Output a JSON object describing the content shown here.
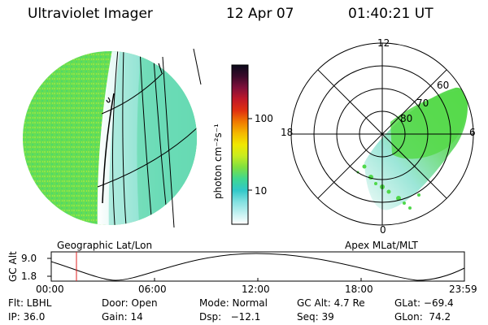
{
  "header": {
    "instrument": "Ultraviolet Imager",
    "date": "12 Apr 07",
    "time": "01:40:21 UT"
  },
  "colorbar": {
    "unit_label": "photon cm⁻²s⁻¹",
    "ticks": [
      "100",
      "10"
    ],
    "colors": [
      "#0a0a1a",
      "#3a0a2a",
      "#80103a",
      "#c01828",
      "#e03010",
      "#f07a00",
      "#f4b800",
      "#f0e800",
      "#c8ec20",
      "#7ee040",
      "#40d890",
      "#30c8c8",
      "#80e0e0",
      "#c0f0f0",
      "#ffffff"
    ]
  },
  "geo_panel": {
    "label": "Geographic Lat/Lon",
    "disc_color": "#66dd55"
  },
  "polar_panel": {
    "label": "Apex MLat/MLT",
    "mlt_labels": {
      "top": "12",
      "left": "18",
      "right": "6",
      "bottom": "0"
    },
    "mlat_labels": [
      "60",
      "70",
      "80"
    ]
  },
  "altitude_plot": {
    "ylabel": "GC Alt",
    "yticks": [
      "9.0",
      "1.8"
    ],
    "xticks": [
      "00:00",
      "06:00",
      "12:00",
      "18:00",
      "23:59"
    ],
    "marker_color": "#e02020"
  },
  "info": {
    "flt": "Flt: LBHL",
    "door": "Door: Open",
    "mode": "Mode: Normal",
    "gc_alt": "GC Alt: 4.7 Re",
    "glat": "GLat: −69.4",
    "ip": "IP: 36.0",
    "gain": "Gain: 14",
    "dsp": "Dsp:   −12.1",
    "seq": "Seq: 39",
    "glon": "GLon:  74.2"
  }
}
